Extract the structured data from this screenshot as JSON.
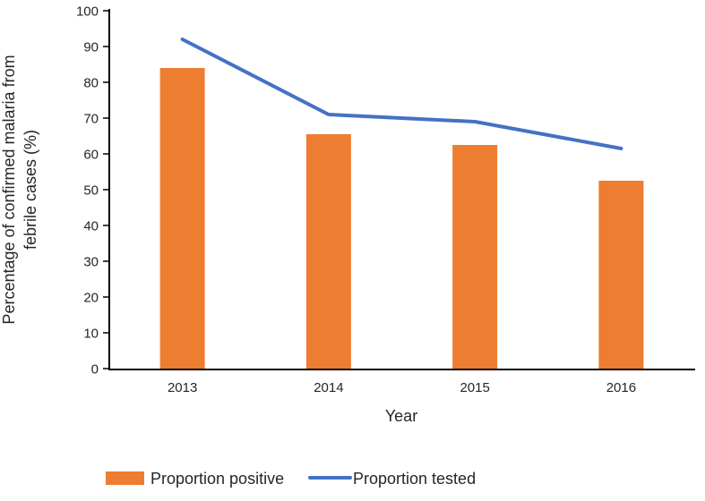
{
  "chart_data": {
    "type": "bar+line",
    "categories": [
      "2013",
      "2014",
      "2015",
      "2016"
    ],
    "series": [
      {
        "name": "Proportion positive",
        "type": "bar",
        "color": "#ED7D31",
        "values": [
          84,
          65.5,
          62.5,
          52.5
        ]
      },
      {
        "name": "Proportion tested",
        "type": "line",
        "color": "#4472C4",
        "values": [
          92,
          71,
          69,
          61.5
        ]
      }
    ],
    "title": "",
    "xlabel": "Year",
    "ylabel": "Percentage of confirmed malaria from febrile cases (%)",
    "ylabel_lines": [
      "Percentage of confirmed malaria from",
      "febrile cases (%)"
    ],
    "ylim": [
      0,
      100
    ],
    "ytick_step": 10,
    "grid": false,
    "legend_position": "bottom",
    "colors": {
      "axis": "#000000",
      "text": "#262626",
      "background": "#ffffff"
    }
  }
}
